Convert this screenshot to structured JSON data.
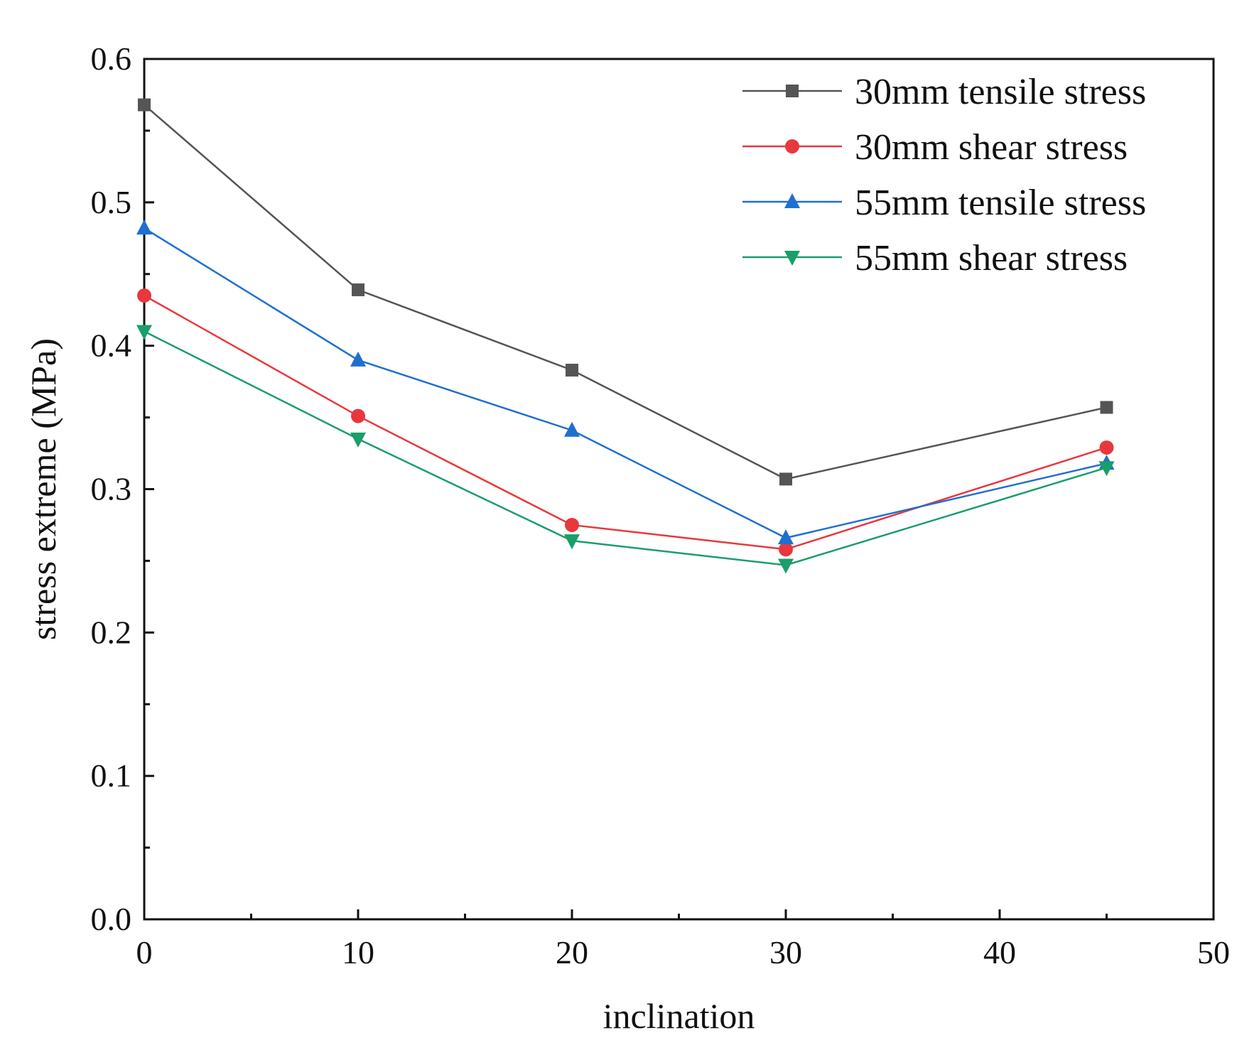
{
  "chart_data": {
    "type": "line",
    "title": "",
    "xlabel": "inclination",
    "ylabel": "stress extreme (MPa)",
    "xlim": [
      0,
      50
    ],
    "ylim": [
      0,
      0.6
    ],
    "x_major_ticks": [
      0,
      10,
      20,
      30,
      40,
      50
    ],
    "x_tick_labels": [
      "0",
      "10",
      "20",
      "30",
      "40",
      "50"
    ],
    "x_minor_ticks": [
      5,
      15,
      25,
      35,
      45
    ],
    "y_major_ticks": [
      0,
      0.1,
      0.2,
      0.3,
      0.4,
      0.5,
      0.6
    ],
    "y_tick_labels": [
      "0.0",
      "0.1",
      "0.2",
      "0.3",
      "0.4",
      "0.5",
      "0.6"
    ],
    "y_minor_ticks": [
      0.05,
      0.15,
      0.25,
      0.35,
      0.45,
      0.55
    ],
    "grid": false,
    "legend_position": "top-right",
    "x": [
      0,
      10,
      20,
      30,
      45
    ],
    "series": [
      {
        "name": "30mm tensile stress",
        "color": "#555555",
        "marker": "square",
        "values": [
          0.568,
          0.439,
          0.383,
          0.307,
          0.357
        ]
      },
      {
        "name": "30mm shear stress",
        "color": "#e8383d",
        "marker": "circle",
        "values": [
          0.435,
          0.351,
          0.275,
          0.258,
          0.329
        ]
      },
      {
        "name": "55mm tensile stress",
        "color": "#1f6fd0",
        "marker": "triangle-up",
        "values": [
          0.482,
          0.39,
          0.341,
          0.266,
          0.318
        ]
      },
      {
        "name": "55mm shear stress",
        "color": "#1a9e6a",
        "marker": "triangle-down",
        "values": [
          0.41,
          0.335,
          0.264,
          0.247,
          0.315
        ]
      }
    ]
  }
}
